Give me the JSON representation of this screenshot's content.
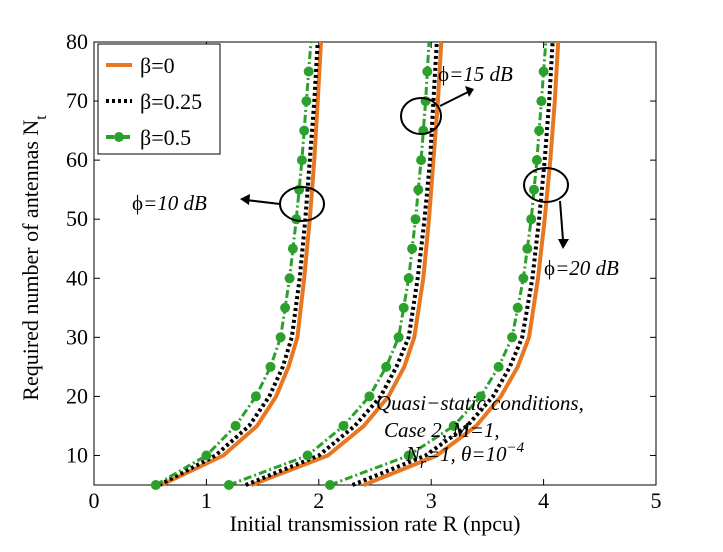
{
  "chart_data": {
    "type": "line",
    "title": "",
    "xlabel": "Initial transmission rate R (npcu)",
    "ylabel": "Required number of antennas N",
    "ylabel_sub": "t",
    "xlim": [
      0,
      5
    ],
    "ylim": [
      5,
      80
    ],
    "xticks": [
      0,
      1,
      2,
      3,
      4,
      5
    ],
    "yticks": [
      10,
      20,
      30,
      40,
      50,
      60,
      70,
      80
    ],
    "grid": false,
    "legend_position": "top-left",
    "legend": [
      {
        "symbol": "β",
        "label": "=0",
        "color": "#e87722",
        "style": "solid"
      },
      {
        "symbol": "β",
        "label": "=0.25",
        "color": "#000000",
        "style": "dotted"
      },
      {
        "symbol": "β",
        "label": "=0.5",
        "color": "#2ca02c",
        "style": "dashdot-marker"
      }
    ],
    "groups": [
      {
        "phi_label": "=10 dB",
        "series": {
          "b0": {
            "x": [
              0.6,
              1.15,
              1.45,
              1.62,
              1.73,
              1.81,
              1.87,
              1.92,
              1.96,
              1.99,
              2.02
            ],
            "y": [
              5,
              10,
              15,
              20,
              25,
              30,
              40,
              50,
              60,
              70,
              80
            ]
          },
          "b025": {
            "x": [
              0.58,
              1.08,
              1.38,
              1.56,
              1.68,
              1.76,
              1.83,
              1.88,
              1.92,
              1.96,
              1.99
            ],
            "y": [
              5,
              10,
              15,
              20,
              25,
              30,
              40,
              50,
              60,
              70,
              80
            ]
          },
          "b05": {
            "x": [
              0.55,
              1.0,
              1.26,
              1.44,
              1.57,
              1.66,
              1.74,
              1.8,
              1.85,
              1.89,
              1.93
            ],
            "y": [
              5,
              10,
              15,
              20,
              25,
              30,
              40,
              50,
              60,
              70,
              80
            ]
          }
        }
      },
      {
        "phi_label": "=15 dB",
        "series": {
          "b0": {
            "x": [
              1.4,
              2.08,
              2.4,
              2.62,
              2.76,
              2.85,
              2.93,
              2.98,
              3.02,
              3.06,
              3.09
            ],
            "y": [
              5,
              10,
              15,
              20,
              25,
              30,
              40,
              50,
              60,
              70,
              80
            ]
          },
          "b025": {
            "x": [
              1.35,
              2.0,
              2.32,
              2.55,
              2.69,
              2.8,
              2.88,
              2.94,
              2.99,
              3.02,
              3.05
            ],
            "y": [
              5,
              10,
              15,
              20,
              25,
              30,
              40,
              50,
              60,
              70,
              80
            ]
          },
          "b05": {
            "x": [
              1.2,
              1.9,
              2.22,
              2.45,
              2.6,
              2.71,
              2.8,
              2.86,
              2.91,
              2.95,
              2.98
            ],
            "y": [
              5,
              10,
              15,
              20,
              25,
              30,
              40,
              50,
              60,
              70,
              80
            ]
          }
        }
      },
      {
        "phi_label": "=20 dB",
        "series": {
          "b0": {
            "x": [
              2.4,
              3.05,
              3.4,
              3.62,
              3.77,
              3.87,
              3.95,
              4.01,
              4.06,
              4.1,
              4.13
            ],
            "y": [
              5,
              10,
              15,
              20,
              25,
              30,
              40,
              50,
              60,
              70,
              80
            ]
          },
          "b025": {
            "x": [
              2.3,
              2.95,
              3.32,
              3.55,
              3.7,
              3.81,
              3.9,
              3.96,
              4.01,
              4.05,
              4.08
            ],
            "y": [
              5,
              10,
              15,
              20,
              25,
              30,
              40,
              50,
              60,
              70,
              80
            ]
          },
          "b05": {
            "x": [
              2.1,
              2.8,
              3.2,
              3.44,
              3.6,
              3.72,
              3.82,
              3.89,
              3.94,
              3.98,
              4.02
            ],
            "y": [
              5,
              10,
              15,
              20,
              25,
              30,
              40,
              50,
              60,
              70,
              80
            ]
          }
        }
      }
    ],
    "annotation": {
      "line1": "Quasi−static conditions,",
      "line2": "Case 2, M=1,",
      "line3a": "N",
      "line3sub": "r",
      "line3b": "=1, θ=10",
      "line3sup": "−4"
    },
    "phi_symbol": "ϕ"
  }
}
